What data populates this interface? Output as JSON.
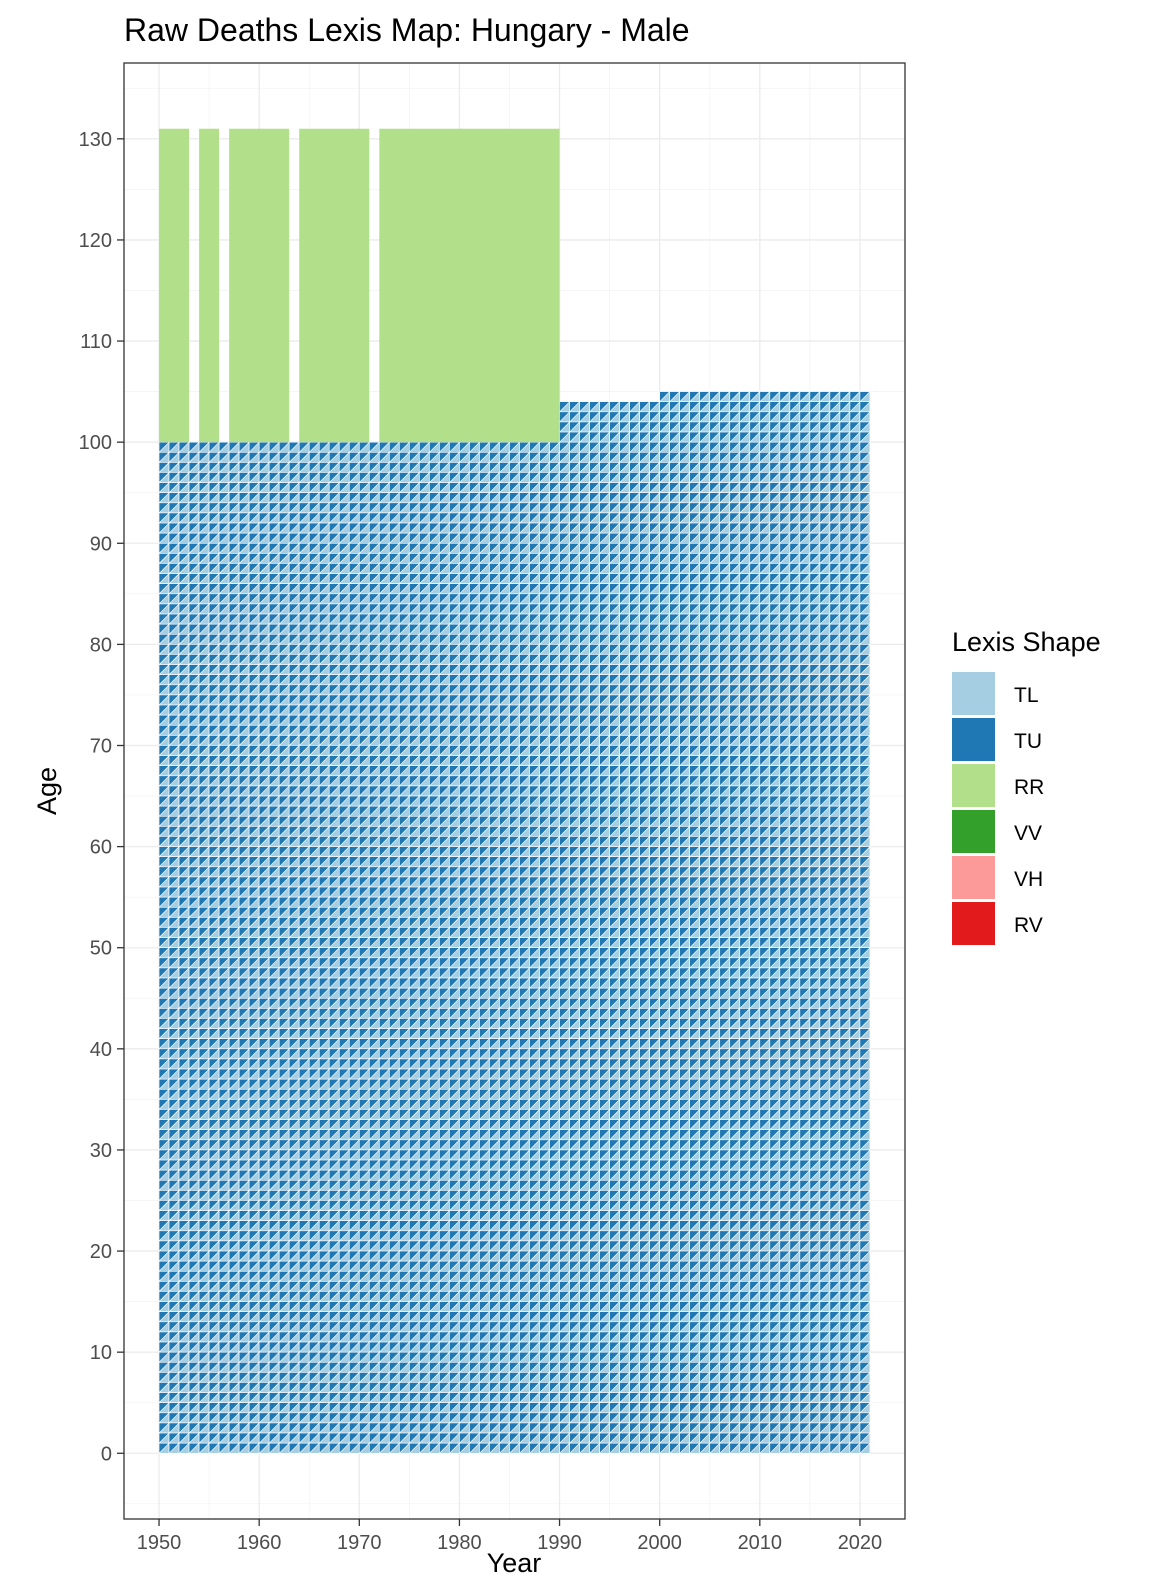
{
  "chart_data": {
    "type": "heatmap",
    "title": "Raw Deaths Lexis Map: Hungary - Male",
    "xlabel": "Year",
    "ylabel": "Age",
    "xlim": [
      1946.5,
      2024.5
    ],
    "ylim": [
      -6.5,
      137.5
    ],
    "x_ticks": [
      1950,
      1960,
      1970,
      1980,
      1990,
      2000,
      2010,
      2020
    ],
    "y_ticks": [
      0,
      10,
      20,
      30,
      40,
      50,
      60,
      70,
      80,
      90,
      100,
      110,
      120,
      130
    ],
    "grid": true,
    "legend": {
      "title": "Lexis Shape",
      "position": "right",
      "entries": [
        {
          "name": "TL",
          "color": "#A6CEE3"
        },
        {
          "name": "TU",
          "color": "#1F78B4"
        },
        {
          "name": "RR",
          "color": "#B2DF8A"
        },
        {
          "name": "VV",
          "color": "#33A02C"
        },
        {
          "name": "VH",
          "color": "#FB9A99"
        },
        {
          "name": "RV",
          "color": "#E31A1C"
        }
      ]
    },
    "triangle_region": {
      "shapes": [
        "TL",
        "TU"
      ],
      "years": [
        1950,
        2020
      ],
      "ages": [
        0,
        99
      ],
      "top_age_by_year": [
        {
          "from": 1950,
          "to": 1989,
          "age": 99
        },
        {
          "from": 1990,
          "to": 1999,
          "age": 103
        },
        {
          "from": 2000,
          "to": 2020,
          "age": 104
        }
      ]
    },
    "rr_blocks": [
      {
        "shape": "RR",
        "years": [
          1950,
          1952
        ],
        "ages": [
          100,
          131
        ]
      },
      {
        "shape": "RR",
        "years": [
          1954,
          1955
        ],
        "ages": [
          100,
          131
        ]
      },
      {
        "shape": "RR",
        "years": [
          1957,
          1962
        ],
        "ages": [
          100,
          131
        ]
      },
      {
        "shape": "RR",
        "years": [
          1964,
          1970
        ],
        "ages": [
          100,
          131
        ]
      },
      {
        "shape": "RR",
        "years": [
          1972,
          1989
        ],
        "ages": [
          100,
          131
        ]
      }
    ]
  }
}
